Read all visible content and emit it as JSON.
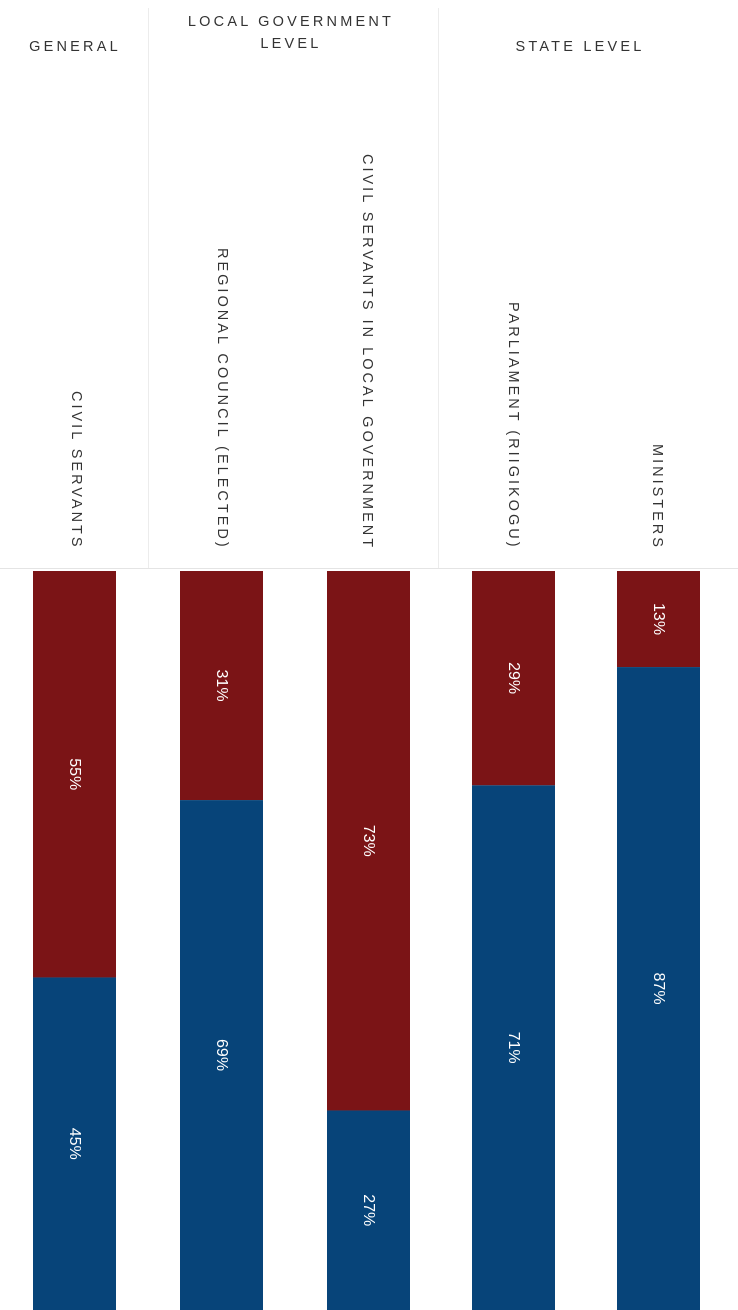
{
  "chart_data": {
    "type": "bar",
    "stacked": true,
    "orientation": "vertical-columns, labels rotated 90°",
    "groups": [
      {
        "name": "GENERAL",
        "columns": [
          0
        ]
      },
      {
        "name": "LOCAL GOVERNMENT LEVEL",
        "columns": [
          1,
          2
        ]
      },
      {
        "name": "STATE LEVEL",
        "columns": [
          3,
          4
        ]
      }
    ],
    "categories": [
      "CIVIL SERVANTS",
      "REGIONAL COUNCIL (ELECTED)",
      "CIVIL SERVANTS IN LOCAL GOVERNMENT",
      "PARLIAMENT (RIIGIKOGU)",
      "MINISTERS"
    ],
    "series": [
      {
        "color": "#7b1416",
        "values": [
          55,
          31,
          73,
          29,
          13
        ],
        "labels": [
          "55%",
          "31%",
          "73%",
          "29%",
          "13%"
        ]
      },
      {
        "color": "#074479",
        "values": [
          45,
          69,
          27,
          71,
          87
        ],
        "labels": [
          "45%",
          "69%",
          "27%",
          "71%",
          "87%"
        ]
      }
    ],
    "unit": "%",
    "ylim": [
      0,
      100
    ],
    "legend": "none",
    "grid": false
  }
}
